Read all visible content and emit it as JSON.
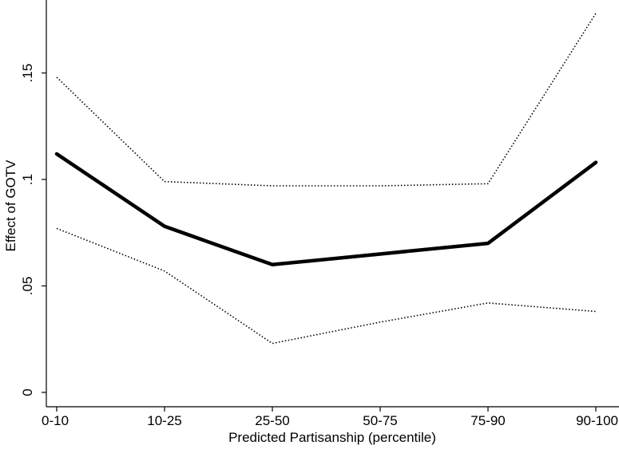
{
  "chart_data": {
    "type": "line",
    "title": "",
    "xlabel": "Predicted Partisanship (percentile)",
    "ylabel": "Effect of GOTV",
    "categories": [
      "0-10",
      "10-25",
      "25-50",
      "50-75",
      "75-90",
      "90-100"
    ],
    "ylim": [
      0,
      0.18
    ],
    "yticks": [
      0,
      0.05,
      0.1,
      0.15
    ],
    "ytick_labels": [
      "0",
      ".05",
      ".1",
      ".15"
    ],
    "grid": false,
    "series": [
      {
        "values": [
          0.112,
          0.078,
          0.06,
          0.065,
          0.07,
          0.108
        ],
        "style": "solid-thick"
      },
      {
        "values": [
          0.148,
          0.099,
          0.097,
          0.097,
          0.098,
          0.178
        ],
        "style": "dotted"
      },
      {
        "values": [
          0.077,
          0.057,
          0.023,
          0.033,
          0.042,
          0.038
        ],
        "style": "dotted"
      }
    ],
    "colors": {
      "line": "#000000",
      "background": "#ffffff"
    }
  }
}
